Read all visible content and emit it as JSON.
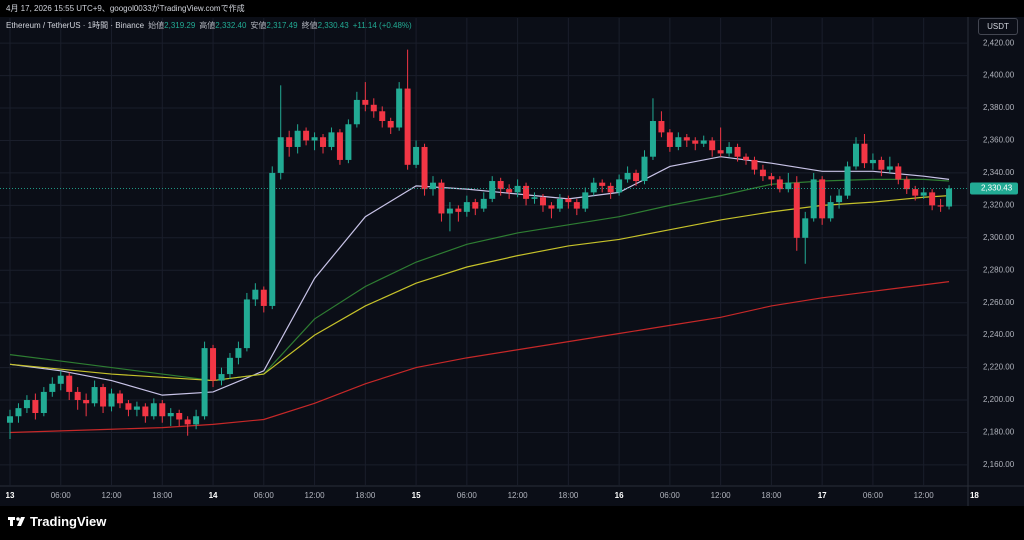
{
  "caption": "4月 17, 2026 15:55 UTC+9、googol0033がTradingView.comで作成",
  "brand": "TradingView",
  "chart_data": {
    "type": "candlestick",
    "header": {
      "symbol": "Ethereum / TetherUS · 1時間 · Binance",
      "ohlc": [
        {
          "label": "始値",
          "value": "2,319.29"
        },
        {
          "label": "高値",
          "value": "2,332.40"
        },
        {
          "label": "安値",
          "value": "2,317.49"
        },
        {
          "label": "終値",
          "value": "2,330.43"
        }
      ],
      "change": "+11.14 (+0.48%)"
    },
    "currency": "USDT",
    "last_price_label": "2,330.43",
    "up_color": "#22ab94",
    "down_color": "#f23645",
    "grid": true,
    "categories": [
      "13",
      null,
      null,
      null,
      null,
      null,
      "06:00",
      null,
      null,
      null,
      null,
      null,
      "12:00",
      null,
      null,
      null,
      null,
      null,
      "18:00",
      null,
      null,
      null,
      null,
      null,
      "14",
      null,
      null,
      null,
      null,
      null,
      "06:00",
      null,
      null,
      null,
      null,
      null,
      "12:00",
      null,
      null,
      null,
      null,
      null,
      "18:00",
      null,
      null,
      null,
      null,
      null,
      "15",
      null,
      null,
      null,
      null,
      null,
      "06:00",
      null,
      null,
      null,
      null,
      null,
      "12:00",
      null,
      null,
      null,
      null,
      null,
      "18:00",
      null,
      null,
      null,
      null,
      null,
      "16",
      null,
      null,
      null,
      null,
      null,
      "06:00",
      null,
      null,
      null,
      null,
      null,
      "12:00",
      null,
      null,
      null,
      null,
      null,
      "18:00",
      null,
      null,
      null,
      null,
      null,
      "17",
      null,
      null,
      null,
      null,
      null,
      "06:00",
      null,
      null,
      null,
      null,
      null,
      "12:00",
      null,
      null,
      null,
      null,
      null,
      "18"
    ],
    "open": [
      2186,
      2190,
      2195,
      2200,
      2192,
      2205,
      2210,
      2215,
      2205,
      2200,
      2198,
      2208,
      2196,
      2204,
      2198,
      2194,
      2196,
      2190,
      2198,
      2190,
      2192,
      2188,
      2185,
      2190,
      2232,
      2212,
      2216,
      2226,
      2232,
      2262,
      2268,
      2258,
      2340,
      2362,
      2356,
      2366,
      2360,
      2362,
      2356,
      2365,
      2348,
      2370,
      2385,
      2382,
      2378,
      2372,
      2368,
      2392,
      2345,
      2356,
      2330,
      2334,
      2315,
      2318,
      2316,
      2322,
      2318,
      2324,
      2335,
      2330,
      2328,
      2332,
      2324,
      2325,
      2320,
      2318,
      2324,
      2322,
      2318,
      2328,
      2334,
      2332,
      2328,
      2336,
      2340,
      2335,
      2350,
      2372,
      2365,
      2356,
      2362,
      2360,
      2358,
      2360,
      2354,
      2352,
      2356,
      2350,
      2348,
      2342,
      2338,
      2336,
      2330,
      2334,
      2300,
      2312,
      2336,
      2312,
      2322,
      2326,
      2344,
      2358,
      2346,
      2348,
      2342,
      2344,
      2336,
      2330,
      2326,
      2328,
      2320,
      2319.29,
      null,
      null,
      null
    ],
    "high": [
      2194,
      2198,
      2203,
      2204,
      2208,
      2214,
      2218,
      2217,
      2208,
      2204,
      2212,
      2210,
      2207,
      2206,
      2200,
      2199,
      2198,
      2201,
      2200,
      2195,
      2194,
      2190,
      2194,
      2236,
      2234,
      2220,
      2229,
      2236,
      2266,
      2272,
      2270,
      2344,
      2394,
      2366,
      2370,
      2368,
      2365,
      2364,
      2368,
      2367,
      2373,
      2390,
      2396,
      2386,
      2381,
      2374,
      2396,
      2416,
      2360,
      2358,
      2338,
      2336,
      2322,
      2320,
      2326,
      2324,
      2328,
      2338,
      2337,
      2333,
      2336,
      2334,
      2328,
      2327,
      2322,
      2327,
      2326,
      2324,
      2331,
      2337,
      2336,
      2334,
      2339,
      2344,
      2342,
      2354,
      2386,
      2378,
      2367,
      2365,
      2364,
      2362,
      2363,
      2362,
      2368,
      2359,
      2358,
      2352,
      2350,
      2345,
      2340,
      2338,
      2340,
      2338,
      2316,
      2340,
      2338,
      2326,
      2330,
      2347,
      2362,
      2364,
      2352,
      2350,
      2350,
      2346,
      2338,
      2332,
      2331,
      2330,
      2324,
      2332.4,
      null,
      null,
      null
    ],
    "low": [
      2176,
      2186,
      2192,
      2188,
      2190,
      2202,
      2206,
      2200,
      2194,
      2190,
      2196,
      2192,
      2193,
      2195,
      2190,
      2190,
      2186,
      2188,
      2186,
      2184,
      2184,
      2178,
      2182,
      2188,
      2208,
      2209,
      2213,
      2222,
      2230,
      2258,
      2254,
      2256,
      2336,
      2350,
      2352,
      2357,
      2354,
      2352,
      2354,
      2345,
      2346,
      2368,
      2378,
      2374,
      2368,
      2364,
      2366,
      2342,
      2343,
      2326,
      2326,
      2310,
      2304,
      2310,
      2313,
      2314,
      2316,
      2322,
      2326,
      2324,
      2325,
      2320,
      2321,
      2316,
      2312,
      2316,
      2318,
      2314,
      2316,
      2326,
      2328,
      2324,
      2326,
      2334,
      2332,
      2333,
      2348,
      2362,
      2353,
      2354,
      2356,
      2354,
      2356,
      2350,
      2350,
      2350,
      2347,
      2345,
      2339,
      2335,
      2332,
      2328,
      2328,
      2292,
      2284,
      2310,
      2308,
      2310,
      2318,
      2324,
      2342,
      2343,
      2342,
      2338,
      2340,
      2333,
      2327,
      2323,
      2324,
      2317,
      2316,
      2317.49,
      null,
      null,
      null
    ],
    "close": [
      2190,
      2195,
      2200,
      2192,
      2205,
      2210,
      2215,
      2205,
      2200,
      2198,
      2208,
      2196,
      2204,
      2198,
      2194,
      2196,
      2190,
      2198,
      2190,
      2192,
      2188,
      2185,
      2190,
      2232,
      2212,
      2216,
      2226,
      2232,
      2262,
      2268,
      2258,
      2340,
      2362,
      2356,
      2366,
      2360,
      2362,
      2356,
      2365,
      2348,
      2370,
      2385,
      2382,
      2378,
      2372,
      2368,
      2392,
      2345,
      2356,
      2330,
      2334,
      2315,
      2318,
      2316,
      2322,
      2318,
      2324,
      2335,
      2330,
      2328,
      2332,
      2324,
      2325,
      2320,
      2318,
      2324,
      2322,
      2318,
      2328,
      2334,
      2332,
      2328,
      2336,
      2340,
      2335,
      2350,
      2372,
      2365,
      2356,
      2362,
      2360,
      2358,
      2360,
      2354,
      2352,
      2356,
      2350,
      2348,
      2342,
      2338,
      2336,
      2330,
      2334,
      2300,
      2312,
      2336,
      2312,
      2322,
      2326,
      2344,
      2358,
      2346,
      2348,
      2342,
      2344,
      2336,
      2330,
      2326,
      2328,
      2320,
      2319.29,
      2330.43,
      null,
      null,
      null
    ],
    "overlays": [
      {
        "color": "#c9c4e8",
        "x": [
          0,
          6,
          12,
          18,
          24,
          30,
          36,
          42,
          48,
          54,
          60,
          66,
          72,
          78,
          84,
          90,
          96,
          102,
          108,
          111
        ],
        "values": [
          2222,
          2218,
          2212,
          2203,
          2205,
          2218,
          2275,
          2313,
          2332,
          2330,
          2327,
          2324,
          2328,
          2344,
          2350,
          2346,
          2341,
          2341,
          2338,
          2336
        ]
      },
      {
        "color": "#2e7d32",
        "x": [
          0,
          6,
          12,
          18,
          24,
          30,
          36,
          42,
          48,
          54,
          60,
          66,
          72,
          78,
          84,
          90,
          96,
          102,
          108,
          111
        ],
        "values": [
          2228,
          2224,
          2220,
          2216,
          2212,
          2216,
          2250,
          2270,
          2285,
          2296,
          2303,
          2308,
          2313,
          2320,
          2326,
          2333,
          2335,
          2336,
          2336,
          2335
        ]
      },
      {
        "color": "#c6c22a",
        "x": [
          0,
          6,
          12,
          18,
          24,
          30,
          36,
          42,
          48,
          54,
          60,
          66,
          72,
          78,
          84,
          90,
          96,
          102,
          108,
          111
        ],
        "values": [
          2222,
          2219,
          2216,
          2214,
          2212,
          2216,
          2240,
          2258,
          2272,
          2282,
          2289,
          2295,
          2299,
          2305,
          2311,
          2316,
          2320,
          2322,
          2325,
          2326
        ]
      },
      {
        "color": "#c62828",
        "x": [
          0,
          6,
          12,
          18,
          24,
          30,
          36,
          42,
          48,
          54,
          60,
          66,
          72,
          78,
          84,
          90,
          96,
          102,
          108,
          111
        ],
        "values": [
          2180,
          2181,
          2182,
          2183,
          2185,
          2188,
          2198,
          2210,
          2220,
          2226,
          2231,
          2236,
          2241,
          2246,
          2251,
          2258,
          2263,
          2267,
          2271,
          2273
        ]
      }
    ],
    "ylim": [
      2147,
      2435.5
    ],
    "yticks": [
      {
        "value": 2160,
        "label": "2,160.00"
      },
      {
        "value": 2180,
        "label": "2,180.00"
      },
      {
        "value": 2200,
        "label": "2,200.00"
      },
      {
        "value": 2220,
        "label": "2,220.00"
      },
      {
        "value": 2240,
        "label": "2,240.00"
      },
      {
        "value": 2260,
        "label": "2,260.00"
      },
      {
        "value": 2280,
        "label": "2,280.00"
      },
      {
        "value": 2300,
        "label": "2,300.00"
      },
      {
        "value": 2320,
        "label": "2,320.00"
      },
      {
        "value": 2340,
        "label": "2,340.00"
      },
      {
        "value": 2360,
        "label": "2,360.00"
      },
      {
        "value": 2380,
        "label": "2,380.00"
      },
      {
        "value": 2400,
        "label": "2,400.00"
      },
      {
        "value": 2420,
        "label": "2,420.00"
      }
    ]
  }
}
